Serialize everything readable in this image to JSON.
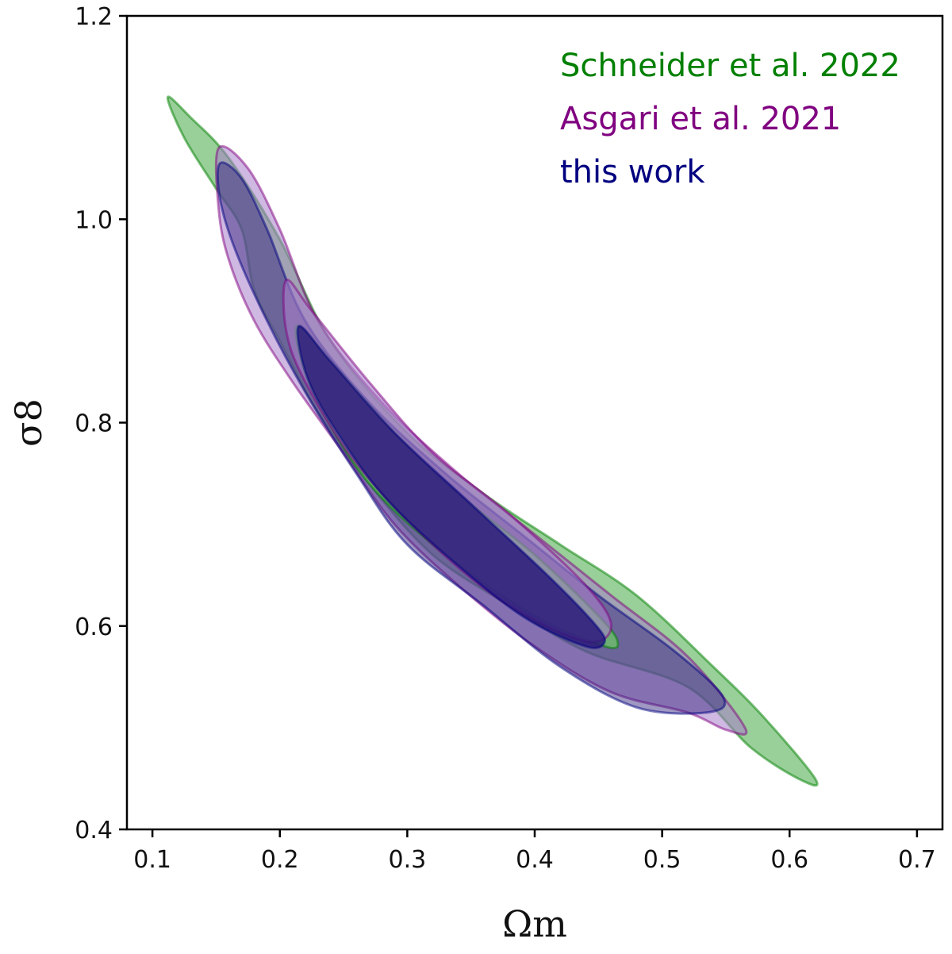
{
  "chart_data": {
    "type": "contour",
    "xlabel": "Ωm",
    "ylabel": "σ8",
    "xlim": [
      0.08,
      0.72
    ],
    "ylim": [
      0.4,
      1.2
    ],
    "x_ticks": [
      "0.1",
      "0.2",
      "0.3",
      "0.4",
      "0.5",
      "0.6",
      "0.7"
    ],
    "y_ticks": [
      "0.4",
      "0.6",
      "0.8",
      "1.0",
      "1.2"
    ],
    "grid": false,
    "legend_position": "top-right",
    "series": [
      {
        "name": "Schneider et al. 2022",
        "color": "#008000",
        "fill": "#6dbb6d",
        "contour_outer": [
          [
            0.112,
            1.12
          ],
          [
            0.13,
            1.1
          ],
          [
            0.16,
            1.06
          ],
          [
            0.2,
            0.98
          ],
          [
            0.24,
            0.88
          ],
          [
            0.3,
            0.79
          ],
          [
            0.36,
            0.73
          ],
          [
            0.42,
            0.68
          ],
          [
            0.48,
            0.63
          ],
          [
            0.54,
            0.56
          ],
          [
            0.58,
            0.51
          ],
          [
            0.62,
            0.45
          ],
          [
            0.61,
            0.448
          ],
          [
            0.57,
            0.48
          ],
          [
            0.52,
            0.54
          ],
          [
            0.44,
            0.575
          ],
          [
            0.38,
            0.62
          ],
          [
            0.32,
            0.67
          ],
          [
            0.27,
            0.74
          ],
          [
            0.23,
            0.81
          ],
          [
            0.2,
            0.88
          ],
          [
            0.18,
            0.93
          ],
          [
            0.17,
            0.99
          ],
          [
            0.15,
            1.03
          ],
          [
            0.125,
            1.08
          ],
          [
            0.112,
            1.12
          ]
        ],
        "contour_inner": [
          [
            0.215,
            0.895
          ],
          [
            0.24,
            0.86
          ],
          [
            0.29,
            0.79
          ],
          [
            0.34,
            0.73
          ],
          [
            0.4,
            0.67
          ],
          [
            0.45,
            0.61
          ],
          [
            0.465,
            0.585
          ],
          [
            0.455,
            0.58
          ],
          [
            0.4,
            0.61
          ],
          [
            0.33,
            0.67
          ],
          [
            0.27,
            0.74
          ],
          [
            0.23,
            0.82
          ],
          [
            0.215,
            0.87
          ],
          [
            0.215,
            0.895
          ]
        ]
      },
      {
        "name": "Asgari et al. 2021",
        "color": "#800080",
        "fill": "#a87ec9",
        "contour_outer": [
          [
            0.152,
            1.07
          ],
          [
            0.175,
            1.05
          ],
          [
            0.2,
            0.99
          ],
          [
            0.23,
            0.9
          ],
          [
            0.28,
            0.82
          ],
          [
            0.34,
            0.75
          ],
          [
            0.4,
            0.69
          ],
          [
            0.46,
            0.63
          ],
          [
            0.52,
            0.57
          ],
          [
            0.565,
            0.5
          ],
          [
            0.55,
            0.498
          ],
          [
            0.52,
            0.515
          ],
          [
            0.46,
            0.535
          ],
          [
            0.4,
            0.58
          ],
          [
            0.34,
            0.64
          ],
          [
            0.29,
            0.7
          ],
          [
            0.25,
            0.77
          ],
          [
            0.21,
            0.84
          ],
          [
            0.18,
            0.9
          ],
          [
            0.16,
            0.96
          ],
          [
            0.152,
            1.01
          ],
          [
            0.152,
            1.07
          ]
        ],
        "contour_inner": [
          [
            0.205,
            0.94
          ],
          [
            0.225,
            0.91
          ],
          [
            0.27,
            0.84
          ],
          [
            0.32,
            0.77
          ],
          [
            0.38,
            0.71
          ],
          [
            0.44,
            0.64
          ],
          [
            0.46,
            0.6
          ],
          [
            0.44,
            0.585
          ],
          [
            0.38,
            0.62
          ],
          [
            0.32,
            0.68
          ],
          [
            0.26,
            0.76
          ],
          [
            0.22,
            0.84
          ],
          [
            0.205,
            0.89
          ],
          [
            0.205,
            0.94
          ]
        ]
      },
      {
        "name": "this work",
        "color": "#000080",
        "fill": "#2a1a7a",
        "contour_outer": [
          [
            0.153,
            1.055
          ],
          [
            0.17,
            1.04
          ],
          [
            0.19,
            0.99
          ],
          [
            0.22,
            0.9
          ],
          [
            0.27,
            0.82
          ],
          [
            0.33,
            0.75
          ],
          [
            0.39,
            0.69
          ],
          [
            0.45,
            0.63
          ],
          [
            0.51,
            0.575
          ],
          [
            0.548,
            0.53
          ],
          [
            0.535,
            0.515
          ],
          [
            0.48,
            0.52
          ],
          [
            0.42,
            0.56
          ],
          [
            0.36,
            0.62
          ],
          [
            0.3,
            0.68
          ],
          [
            0.26,
            0.75
          ],
          [
            0.22,
            0.83
          ],
          [
            0.19,
            0.9
          ],
          [
            0.165,
            0.97
          ],
          [
            0.153,
            1.02
          ],
          [
            0.153,
            1.055
          ]
        ],
        "contour_inner": [
          [
            0.215,
            0.895
          ],
          [
            0.24,
            0.86
          ],
          [
            0.29,
            0.79
          ],
          [
            0.35,
            0.72
          ],
          [
            0.41,
            0.65
          ],
          [
            0.445,
            0.605
          ],
          [
            0.455,
            0.585
          ],
          [
            0.44,
            0.58
          ],
          [
            0.39,
            0.61
          ],
          [
            0.33,
            0.67
          ],
          [
            0.28,
            0.73
          ],
          [
            0.24,
            0.8
          ],
          [
            0.22,
            0.85
          ],
          [
            0.215,
            0.895
          ]
        ]
      }
    ]
  }
}
